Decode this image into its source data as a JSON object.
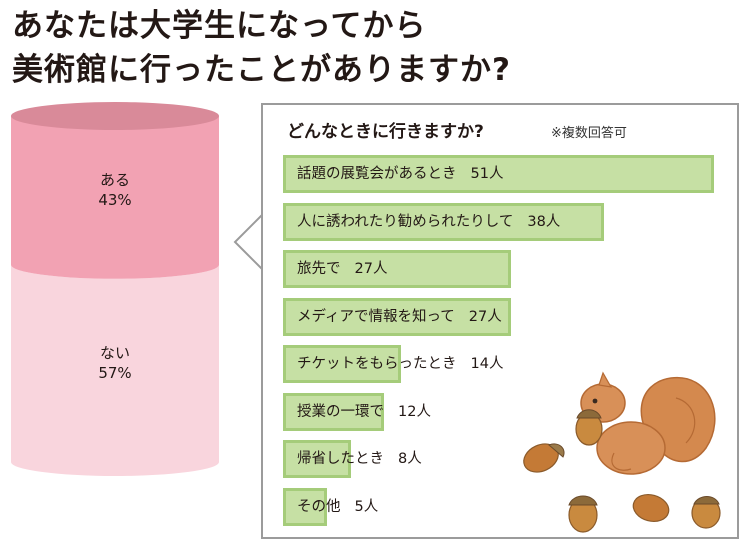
{
  "title": {
    "line1": "あなたは大学生になってから",
    "line2": "美術館に行ったことがありますか?"
  },
  "chart_data": [
    {
      "type": "pie",
      "categories": [
        "ある",
        "ない"
      ],
      "values": [
        43,
        57
      ],
      "labels": [
        "ある\n43%",
        "ない\n57%"
      ],
      "colors": [
        "#f2a2b3",
        "#f9d5dd"
      ]
    },
    {
      "type": "bar",
      "title": "どんなときに行きますか?",
      "note": "※複数回答可",
      "categories": [
        "話題の展覧会があるとき",
        "人に誘われたり勧められたりして",
        "旅先で",
        "メディアで情報を知って",
        "チケットをもらったとき",
        "授業の一環で",
        "帰省したとき",
        "その他"
      ],
      "values": [
        51,
        38,
        27,
        27,
        14,
        12,
        8,
        5
      ],
      "value_labels": [
        "51人",
        "38人",
        "27人",
        "27人",
        "14人",
        "12人",
        "8人",
        "5人"
      ],
      "bar_color": "#c6e0a4"
    }
  ]
}
